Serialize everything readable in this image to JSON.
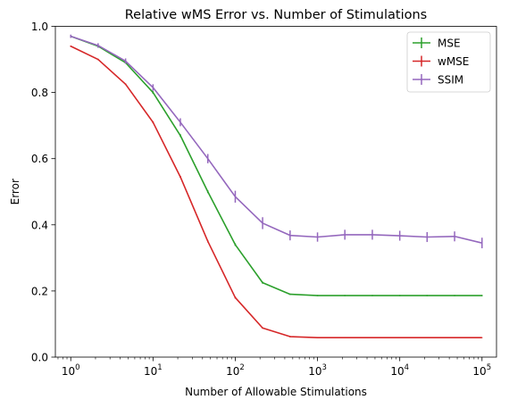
{
  "chart_data": {
    "type": "line",
    "title": "Relative wMS Error vs. Number of Stimulations",
    "xlabel": "Number of Allowable Stimulations",
    "ylabel": "Error",
    "xscale": "log",
    "xlim": [
      0.65,
      150000
    ],
    "ylim": [
      0,
      1
    ],
    "x": [
      1,
      2.15,
      4.64,
      10,
      21.5,
      46.4,
      100,
      215,
      464,
      1000,
      2150,
      4640,
      10000,
      21500,
      46400,
      100000
    ],
    "x_ticks": [
      {
        "base": "10",
        "exp": "0",
        "value": 1
      },
      {
        "base": "10",
        "exp": "1",
        "value": 10
      },
      {
        "base": "10",
        "exp": "2",
        "value": 100
      },
      {
        "base": "10",
        "exp": "3",
        "value": 1000
      },
      {
        "base": "10",
        "exp": "4",
        "value": 10000
      },
      {
        "base": "10",
        "exp": "5",
        "value": 100000
      }
    ],
    "y_ticks": [
      "0.0",
      "0.2",
      "0.4",
      "0.6",
      "0.8",
      "1.0"
    ],
    "grid": false,
    "legend_position": "top-right",
    "series": [
      {
        "name": "MSE",
        "color": "#2ca02c",
        "values": [
          0.97,
          0.94,
          0.89,
          0.8,
          0.67,
          0.5,
          0.34,
          0.225,
          0.19,
          0.186,
          0.186,
          0.186,
          0.186,
          0.186,
          0.186,
          0.186
        ],
        "errors": [
          0.003,
          0.003,
          0.003,
          0.004,
          0.004,
          0.004,
          0.004,
          0.003,
          0.002,
          0.002,
          0.002,
          0.002,
          0.002,
          0.002,
          0.002,
          0.002
        ]
      },
      {
        "name": "wMSE",
        "color": "#d62728",
        "values": [
          0.94,
          0.9,
          0.825,
          0.71,
          0.545,
          0.35,
          0.18,
          0.088,
          0.062,
          0.059,
          0.059,
          0.059,
          0.059,
          0.059,
          0.059,
          0.059
        ],
        "errors": [
          0.002,
          0.002,
          0.002,
          0.003,
          0.003,
          0.003,
          0.003,
          0.002,
          0.002,
          0.001,
          0.001,
          0.001,
          0.001,
          0.001,
          0.001,
          0.001
        ]
      },
      {
        "name": "SSIM",
        "color": "#9467bd",
        "values": [
          0.97,
          0.942,
          0.895,
          0.815,
          0.71,
          0.6,
          0.485,
          0.405,
          0.368,
          0.363,
          0.37,
          0.37,
          0.367,
          0.363,
          0.365,
          0.345
        ],
        "errors": [
          0.005,
          0.007,
          0.008,
          0.01,
          0.012,
          0.014,
          0.018,
          0.018,
          0.015,
          0.014,
          0.015,
          0.015,
          0.015,
          0.015,
          0.015,
          0.016
        ]
      }
    ]
  }
}
